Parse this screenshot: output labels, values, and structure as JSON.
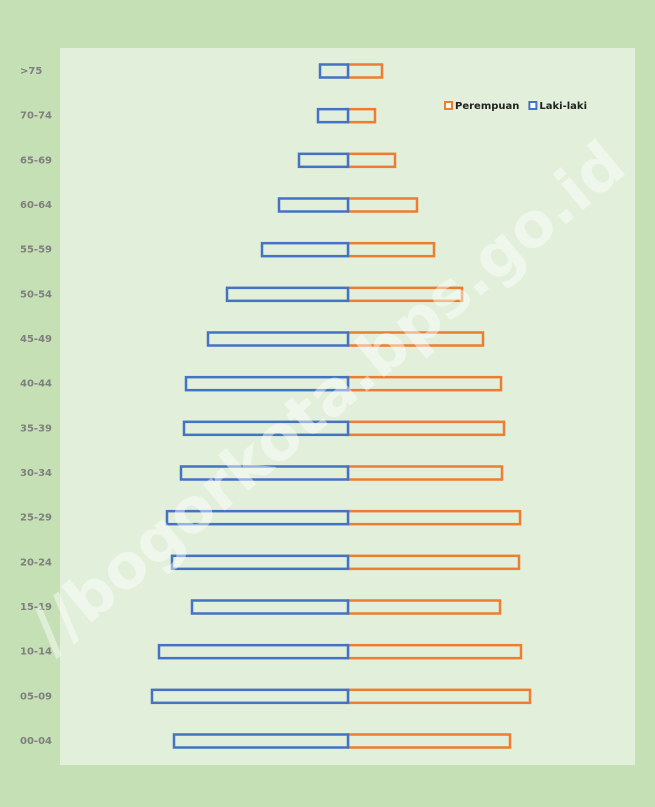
{
  "chart_data": {
    "type": "pyramid",
    "watermark": "//bogorkota.bps.go.id",
    "categories": [
      ">75",
      "70-74",
      "65-69",
      "60-64",
      "55-59",
      "50-54",
      "45-49",
      "40-44",
      "35-39",
      "30-34",
      "25-29",
      "20-24",
      "15-19",
      "10-14",
      "05-09",
      "00-04"
    ],
    "series": [
      {
        "name": "Perempuan",
        "color": "#ed7d31",
        "side": "right",
        "values": [
          34,
          27,
          47,
          69,
          86,
          114,
          135,
          153,
          156,
          154,
          172,
          171,
          152,
          173,
          182,
          162
        ]
      },
      {
        "name": "Laki-laki",
        "color": "#4472c4",
        "side": "left",
        "values": [
          28,
          30,
          49,
          69,
          86,
          121,
          140,
          162,
          164,
          167,
          181,
          176,
          156,
          189,
          196,
          174
        ]
      }
    ],
    "xlim": [
      0,
      200
    ]
  }
}
